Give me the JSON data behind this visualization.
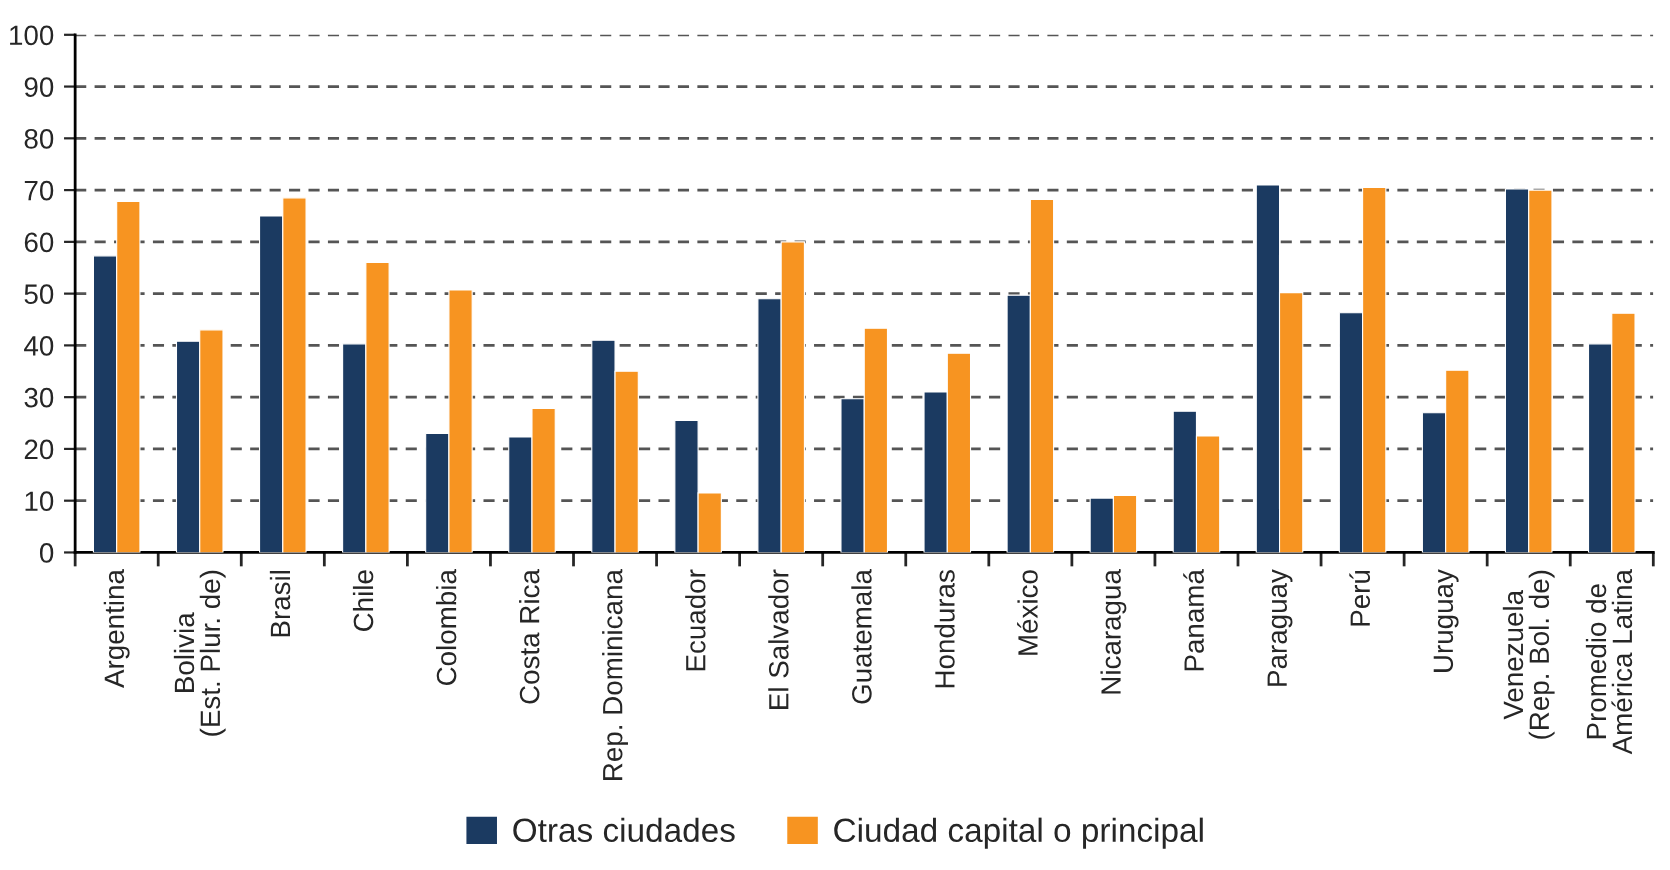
{
  "chart_data": {
    "type": "bar",
    "categories": [
      "Argentina",
      "Bolivia\n(Est. Plur. de)",
      "Brasil",
      "Chile",
      "Colombia",
      "Costa Rica",
      "Rep. Dominicana",
      "Ecuador",
      "El Salvador",
      "Guatemala",
      "Honduras",
      "México",
      "Nicaragua",
      "Panamá",
      "Paraguay",
      "Perú",
      "Uruguay",
      "Venezuela\n(Rep. Bol. de)",
      "Promedio de\nAmérica Latina"
    ],
    "series": [
      {
        "name": "Otras ciudades",
        "color": "#1b3a61",
        "values": [
          57.3,
          40.8,
          65,
          40.3,
          23,
          22.3,
          41,
          25.5,
          49,
          29.7,
          31,
          49.7,
          10.5,
          27.3,
          71,
          46.3,
          27,
          70.2,
          40.3
        ]
      },
      {
        "name": "Ciudad capital o principal",
        "color": "#f79421",
        "values": [
          67.8,
          43,
          68.5,
          56,
          50.7,
          27.8,
          35,
          11.5,
          60,
          43.3,
          38.5,
          68.2,
          11,
          22.5,
          50.2,
          70.5,
          35.2,
          70,
          46.2
        ]
      }
    ],
    "ylim": [
      0,
      100
    ],
    "yticks": [
      0,
      10,
      20,
      30,
      40,
      50,
      60,
      70,
      80,
      90,
      100
    ],
    "grid": "y",
    "legend": "bottom"
  }
}
